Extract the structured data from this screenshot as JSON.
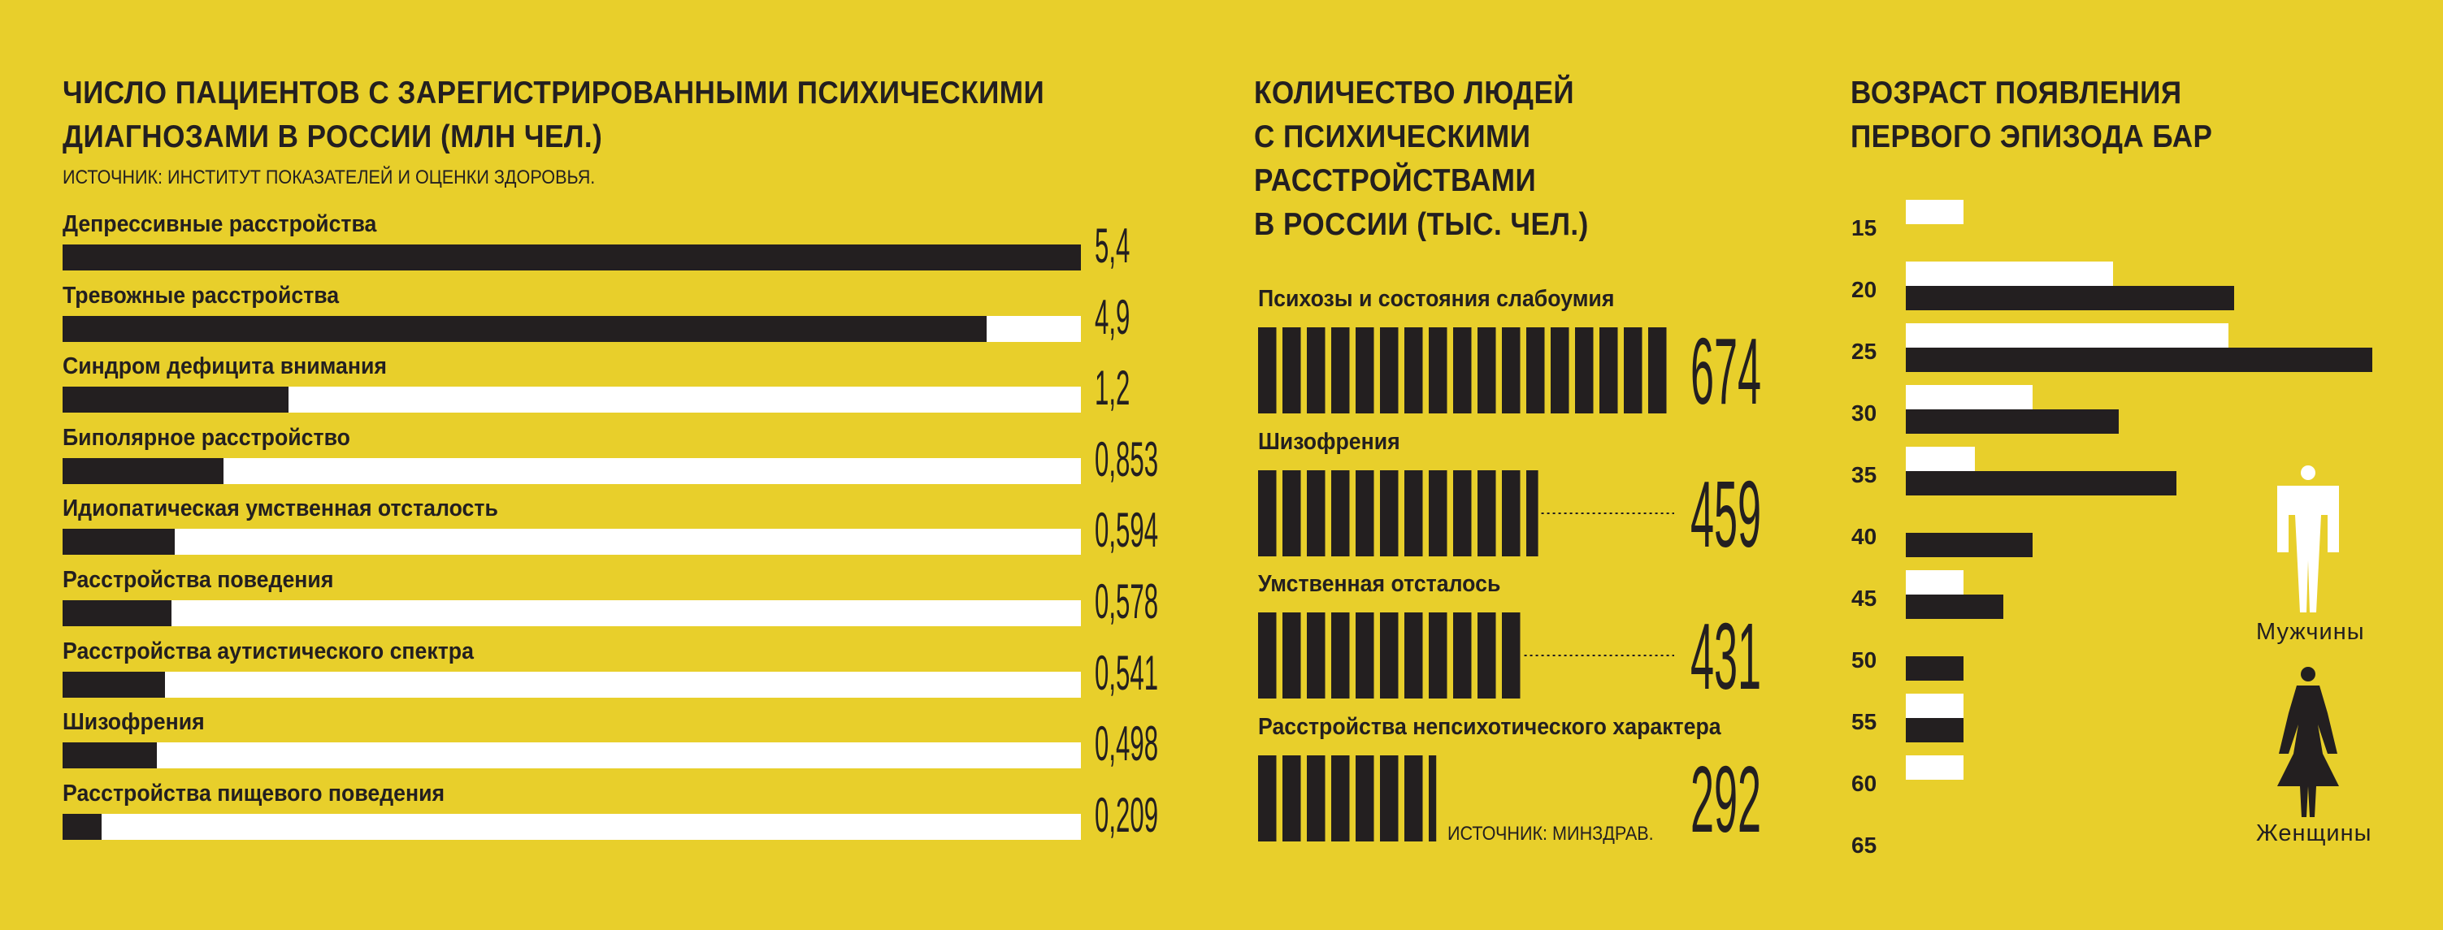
{
  "colors": {
    "background": "#e8cf2b",
    "dark": "#231f20",
    "light": "#ffffff"
  },
  "chart_data": [
    {
      "type": "bar",
      "title": "ЧИСЛО ПАЦИЕНТОВ С ЗАРЕГИСТРИРОВАННЫМИ ПСИХИЧЕСКИМИ\nДИАГНОЗАМИ В РОССИИ (МЛН ЧЕЛ.)",
      "source": "ИСТОЧНИК: ИНСТИТУТ ПОКАЗАТЕЛЕЙ И ОЦЕНКИ ЗДОРОВЬЯ.",
      "categories": [
        "Депрессивные расстройства",
        "Тревожные расстройства",
        "Синдром дефицита внимания",
        "Биполярное расстройство",
        "Идиопатическая умственная отсталость",
        "Расстройства поведения",
        "Расстройства аутистического спектра",
        "Шизофрения",
        "Расстройства пищевого поведения"
      ],
      "values": [
        5.4,
        4.9,
        1.2,
        0.853,
        0.594,
        0.578,
        0.541,
        0.498,
        0.209
      ],
      "value_labels": [
        "5,4",
        "4,9",
        "1,2",
        "0,853",
        "0,594",
        "0,578",
        "0,541",
        "0,498",
        "0,209"
      ],
      "xlim": [
        0,
        5.4
      ]
    },
    {
      "type": "bar",
      "title": "КОЛИЧЕСТВО ЛЮДЕЙ\nС ПСИХИЧЕСКИМИ\nРАССТРОЙСТВАМИ\nВ РОССИИ (ТЫС. ЧЕЛ.)",
      "source": "ИСТОЧНИК: МИНЗДРАВ.",
      "categories": [
        "Психозы и состояния слабоумия",
        "Шизофрения",
        "Умственная отсталось",
        "Расстройства непсихотического характера"
      ],
      "values": [
        674,
        459,
        431,
        292
      ],
      "value_labels": [
        "674",
        "459",
        "431",
        "292"
      ],
      "xlim": [
        0,
        674
      ]
    },
    {
      "type": "bar",
      "title": "ВОЗРАСТ ПОЯВЛЕНИЯ\nПЕРВОГО ЭПИЗОДА БАР",
      "categories": [
        "15",
        "20",
        "25",
        "30",
        "35",
        "40",
        "45",
        "50",
        "55",
        "60",
        "65"
      ],
      "series": [
        {
          "name": "Мужчины",
          "color": "#ffffff",
          "values": [
            1,
            3.6,
            5.6,
            2.2,
            1.2,
            0,
            1,
            0,
            1,
            1,
            0
          ]
        },
        {
          "name": "Женщины",
          "color": "#231f20",
          "values": [
            0,
            5.7,
            8.1,
            3.7,
            4.7,
            2.2,
            1.7,
            1,
            1,
            0,
            0
          ]
        }
      ],
      "xlim": [
        0,
        8.1
      ],
      "legend_position": "right"
    }
  ]
}
